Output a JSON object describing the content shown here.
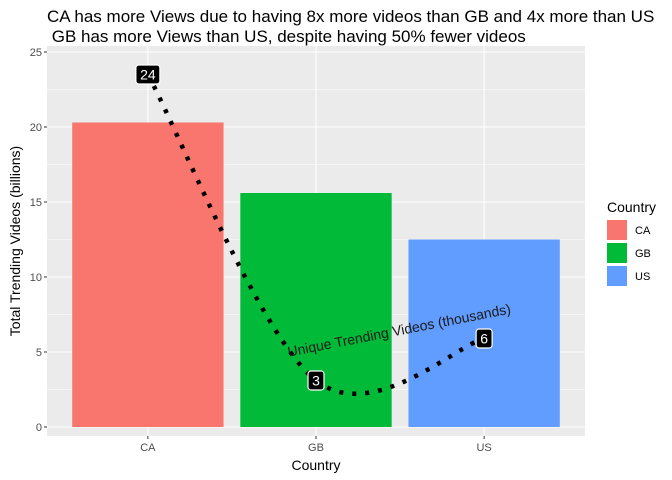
{
  "chart_data": {
    "type": "bar",
    "title": "CA has more Views due to having 8x more videos than GB and 4x more than US",
    "subtitle": " GB has more Views than US, despite having 50% fewer videos",
    "xlabel": "Country",
    "ylabel": "Total Trending Videos (billions)",
    "categories": [
      "CA",
      "GB",
      "US"
    ],
    "values": [
      20.3,
      15.6,
      12.5
    ],
    "ylim": [
      -0.6,
      25.4
    ],
    "yticks": [
      0,
      5,
      10,
      15,
      20,
      25
    ],
    "grid": true,
    "legend": {
      "title": "Country",
      "position": "right",
      "entries": [
        "CA",
        "GB",
        "US"
      ]
    },
    "colors": {
      "CA": "#F8766D",
      "GB": "#00BA38",
      "US": "#619CFF",
      "panel": "#EBEBEB",
      "grid": "#FFFFFF"
    },
    "line_series": {
      "name": "Unique Trending Videos (thousands)",
      "values": [
        24,
        3,
        6
      ],
      "y_positions": [
        23.5,
        3.1,
        5.9
      ],
      "labels": [
        "24",
        "3",
        "6"
      ],
      "style": "dotted"
    }
  }
}
